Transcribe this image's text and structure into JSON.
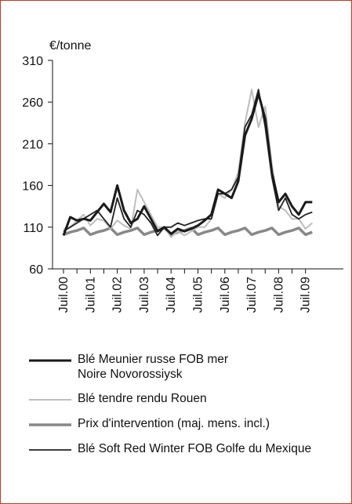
{
  "chart_data": {
    "type": "line",
    "y_label": "€/tonne",
    "categories": [
      "Juil.00",
      null,
      null,
      null,
      "Juil.01",
      null,
      null,
      null,
      "Juil.02",
      null,
      null,
      null,
      "Juil.03",
      null,
      null,
      null,
      "Juil.04",
      null,
      null,
      null,
      "Juil.05",
      null,
      null,
      null,
      "Juil.06",
      null,
      null,
      null,
      "Juil.07",
      null,
      null,
      null,
      "Juil.08",
      null,
      null,
      null,
      "Juil.09",
      null
    ],
    "ylim": [
      60,
      310
    ],
    "yticks": [
      60,
      110,
      160,
      210,
      260,
      310
    ],
    "grid": false,
    "series": [
      {
        "name": "Blé Meunier russe FOB mer Noire Novorossiysk",
        "color": "#1a1a1a",
        "values": [
          100,
          122,
          118,
          120,
          118,
          128,
          138,
          128,
          160,
          130,
          115,
          120,
          135,
          120,
          105,
          110,
          102,
          108,
          105,
          108,
          112,
          118,
          125,
          155,
          150,
          145,
          165,
          220,
          240,
          270,
          240,
          175,
          140,
          150,
          135,
          125,
          140,
          140
        ]
      },
      {
        "name": "Blé tendre rendu Rouen",
        "color": "#bdbdbd",
        "values": [
          108,
          110,
          118,
          125,
          112,
          120,
          118,
          108,
          118,
          112,
          108,
          155,
          140,
          125,
          110,
          110,
          98,
          105,
          100,
          105,
          110,
          110,
          120,
          150,
          145,
          155,
          175,
          235,
          275,
          230,
          255,
          185,
          135,
          130,
          120,
          120,
          108,
          115
        ]
      },
      {
        "name": "Prix d'intervention (maj. mens. incl.)",
        "color": "#888888",
        "values": [
          101,
          104,
          106,
          109,
          101,
          104,
          106,
          109,
          101,
          104,
          106,
          109,
          101,
          104,
          106,
          109,
          101,
          104,
          106,
          109,
          101,
          104,
          106,
          109,
          101,
          104,
          106,
          109,
          101,
          104,
          106,
          109,
          101,
          104,
          106,
          109,
          101,
          104
        ]
      },
      {
        "name": "Blé Soft Red Winter FOB Golfe du Mexique",
        "color": "#222222",
        "values": [
          105,
          110,
          115,
          120,
          125,
          130,
          120,
          110,
          145,
          120,
          110,
          130,
          125,
          115,
          100,
          110,
          110,
          115,
          112,
          115,
          118,
          120,
          120,
          150,
          150,
          155,
          170,
          230,
          245,
          275,
          230,
          170,
          130,
          145,
          125,
          120,
          125,
          128
        ]
      }
    ]
  }
}
